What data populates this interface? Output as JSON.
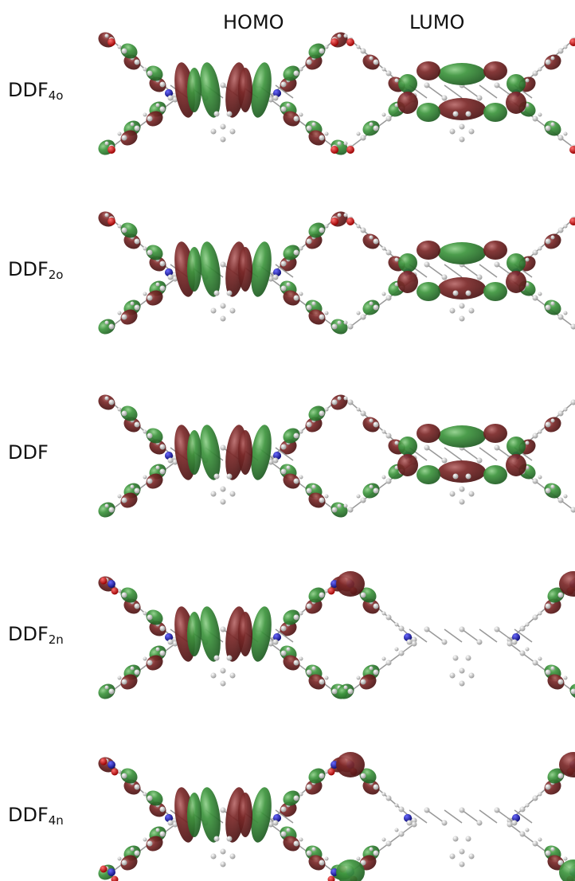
{
  "columns": [
    "HOMO",
    "LUMO"
  ],
  "rows": [
    {
      "label": "DDF",
      "subscript": "4o"
    },
    {
      "label": "DDF",
      "subscript": "2o"
    },
    {
      "label": "DDF"
    },
    {
      "label": "DDF",
      "subscript": "2n"
    },
    {
      "label": "DDF",
      "subscript": "4n"
    }
  ]
}
